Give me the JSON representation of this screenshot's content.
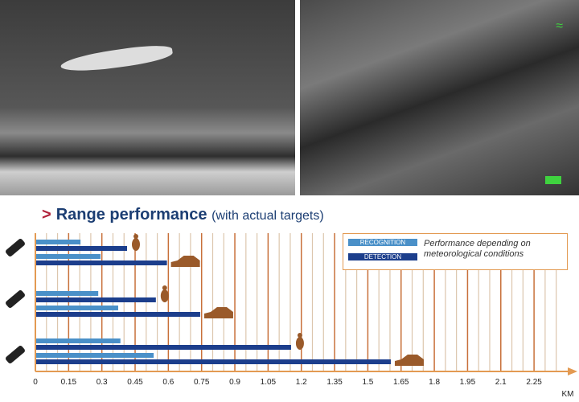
{
  "photos": [
    {
      "label": "aircraft-thermal-image"
    },
    {
      "label": "pedestrian-thermal-image"
    }
  ],
  "title": {
    "arrow": ">",
    "main": "Range performance",
    "sub": "(with actual targets)"
  },
  "legend": {
    "recognition": "RECOGNITION",
    "detection": "DETECTION",
    "note_line1": "Performance depending on",
    "note_line2": "meteorological conditions"
  },
  "colors": {
    "recognition": "#4a90c8",
    "detection": "#1c3e8c",
    "grid_major": "#c8703a",
    "grid_minor": "#dcc6ad",
    "target": "#9a5a2a"
  },
  "chart_data": {
    "type": "bar",
    "orientation": "horizontal",
    "xlim": [
      0,
      2.4
    ],
    "xticks": [
      "0",
      "0.15",
      "0.3",
      "0.45",
      "0.6",
      "0.75",
      "0.9",
      "1.05",
      "1.2",
      "1.35",
      "1.5",
      "1.65",
      "1.8",
      "1.95",
      "2.1",
      "2.25"
    ],
    "xlabel": "KM",
    "grid": true,
    "legend_position": "top-right",
    "groups": [
      {
        "device": "camera-1",
        "bars": [
          {
            "target": "human",
            "type": "recognition",
            "value": 0.2
          },
          {
            "target": "human",
            "type": "detection",
            "value": 0.41
          },
          {
            "target": "car",
            "type": "recognition",
            "value": 0.29
          },
          {
            "target": "car",
            "type": "detection",
            "value": 0.59
          }
        ]
      },
      {
        "device": "camera-2",
        "bars": [
          {
            "target": "human",
            "type": "recognition",
            "value": 0.28
          },
          {
            "target": "human",
            "type": "detection",
            "value": 0.54
          },
          {
            "target": "car",
            "type": "recognition",
            "value": 0.37
          },
          {
            "target": "car",
            "type": "detection",
            "value": 0.74
          }
        ]
      },
      {
        "device": "camera-3",
        "bars": [
          {
            "target": "human",
            "type": "recognition",
            "value": 0.38
          },
          {
            "target": "human",
            "type": "detection",
            "value": 1.15
          },
          {
            "target": "car",
            "type": "recognition",
            "value": 0.53
          },
          {
            "target": "car",
            "type": "detection",
            "value": 1.6
          }
        ]
      }
    ]
  }
}
